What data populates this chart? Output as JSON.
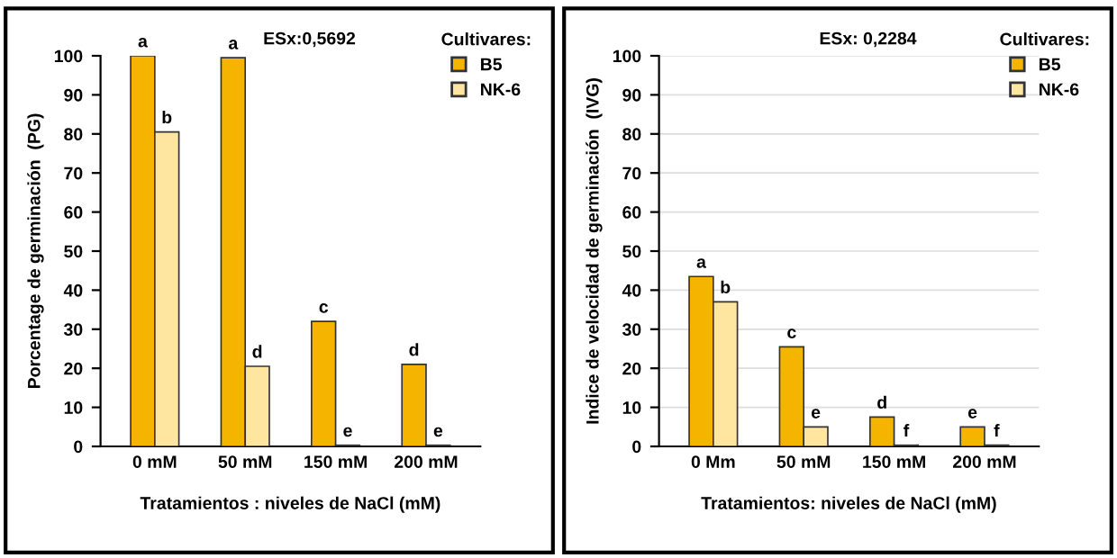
{
  "chart_data": [
    {
      "type": "bar",
      "xlabel": "Tratamientos : niveles de NaCl (mM)",
      "ylabel": "Porcentage de germinación  (PG)",
      "legend_title": "Cultivares:",
      "annotations": [
        "ESx:0,5692"
      ],
      "categories": [
        "0 mM",
        "50 mM",
        "150 mM",
        "200 mM"
      ],
      "series": [
        {
          "name": "B5",
          "color": "#f5b400",
          "values": [
            100,
            99.5,
            32,
            21
          ],
          "value_labels": [
            "a",
            "a",
            "c",
            "d"
          ]
        },
        {
          "name": "NK-6",
          "color": "#ffe6a0",
          "values": [
            80.5,
            20.5,
            0.3,
            0.3
          ],
          "value_labels": [
            "b",
            "d",
            "e",
            "e"
          ]
        }
      ],
      "ylim": [
        0,
        100
      ],
      "yticks": [
        0,
        10,
        20,
        30,
        40,
        50,
        60,
        70,
        80,
        90,
        100
      ],
      "grid": false,
      "legend": "top right"
    },
    {
      "type": "bar",
      "xlabel": "Tratamientos: niveles de NaCl (mM)",
      "ylabel": "Indice de velocidad de germinación  (IVG)",
      "legend_title": "Cultivares:",
      "annotations": [
        "ESx: 0,2284"
      ],
      "categories": [
        "0 Mm",
        "50 mM",
        "150 mM",
        "200 mM"
      ],
      "series": [
        {
          "name": "B5",
          "color": "#f5b400",
          "values": [
            43.5,
            25.5,
            7.5,
            5
          ],
          "value_labels": [
            "a",
            "c",
            "d",
            "e"
          ]
        },
        {
          "name": "NK-6",
          "color": "#ffe6a0",
          "values": [
            37,
            5,
            0.3,
            0.3
          ],
          "value_labels": [
            "b",
            "e",
            "f",
            "f"
          ]
        }
      ],
      "ylim": [
        0,
        100
      ],
      "yticks": [
        0,
        10,
        20,
        30,
        40,
        50,
        60,
        70,
        80,
        90,
        100
      ],
      "grid": "y",
      "legend": "top right"
    }
  ]
}
